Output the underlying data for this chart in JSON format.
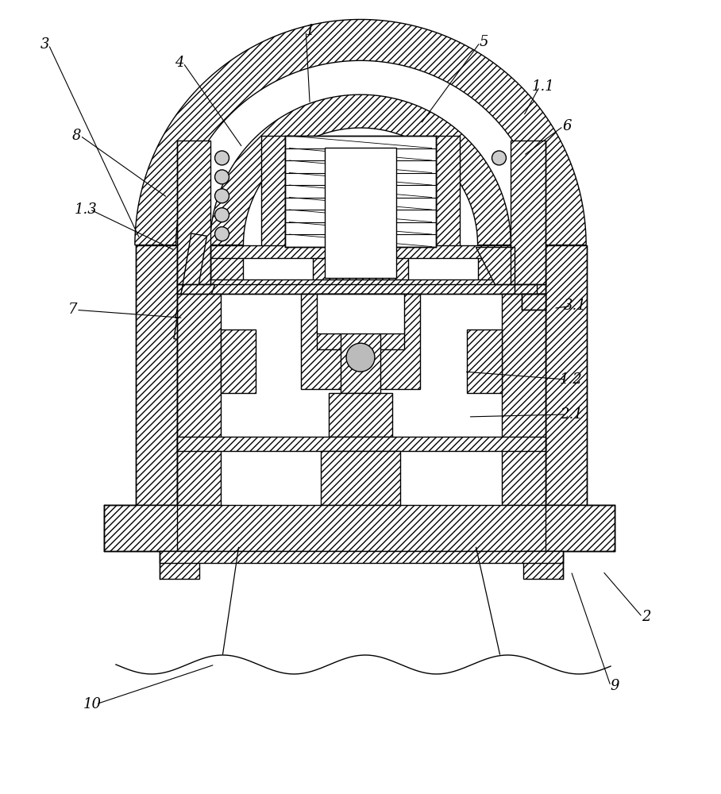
{
  "background_color": "#ffffff",
  "hatch": "////",
  "lw": 1.0,
  "figsize": [
    9.08,
    10.0
  ],
  "dpi": 100,
  "labels": [
    [
      "3",
      55,
      55,
      175,
      300
    ],
    [
      "1",
      390,
      38,
      390,
      130
    ],
    [
      "4",
      225,
      78,
      305,
      185
    ],
    [
      "5",
      610,
      52,
      530,
      155
    ],
    [
      "8",
      95,
      170,
      210,
      248
    ],
    [
      "1.1",
      685,
      108,
      660,
      145
    ],
    [
      "6",
      715,
      158,
      660,
      195
    ],
    [
      "1.3",
      107,
      263,
      220,
      315
    ],
    [
      "7",
      90,
      390,
      230,
      400
    ],
    [
      "3.1",
      725,
      385,
      698,
      388
    ],
    [
      "1.2",
      720,
      478,
      585,
      468
    ],
    [
      "2.1",
      720,
      522,
      590,
      525
    ],
    [
      "2",
      815,
      778,
      760,
      720
    ],
    [
      "9",
      775,
      865,
      720,
      720
    ],
    [
      "10",
      115,
      888,
      270,
      838
    ]
  ]
}
